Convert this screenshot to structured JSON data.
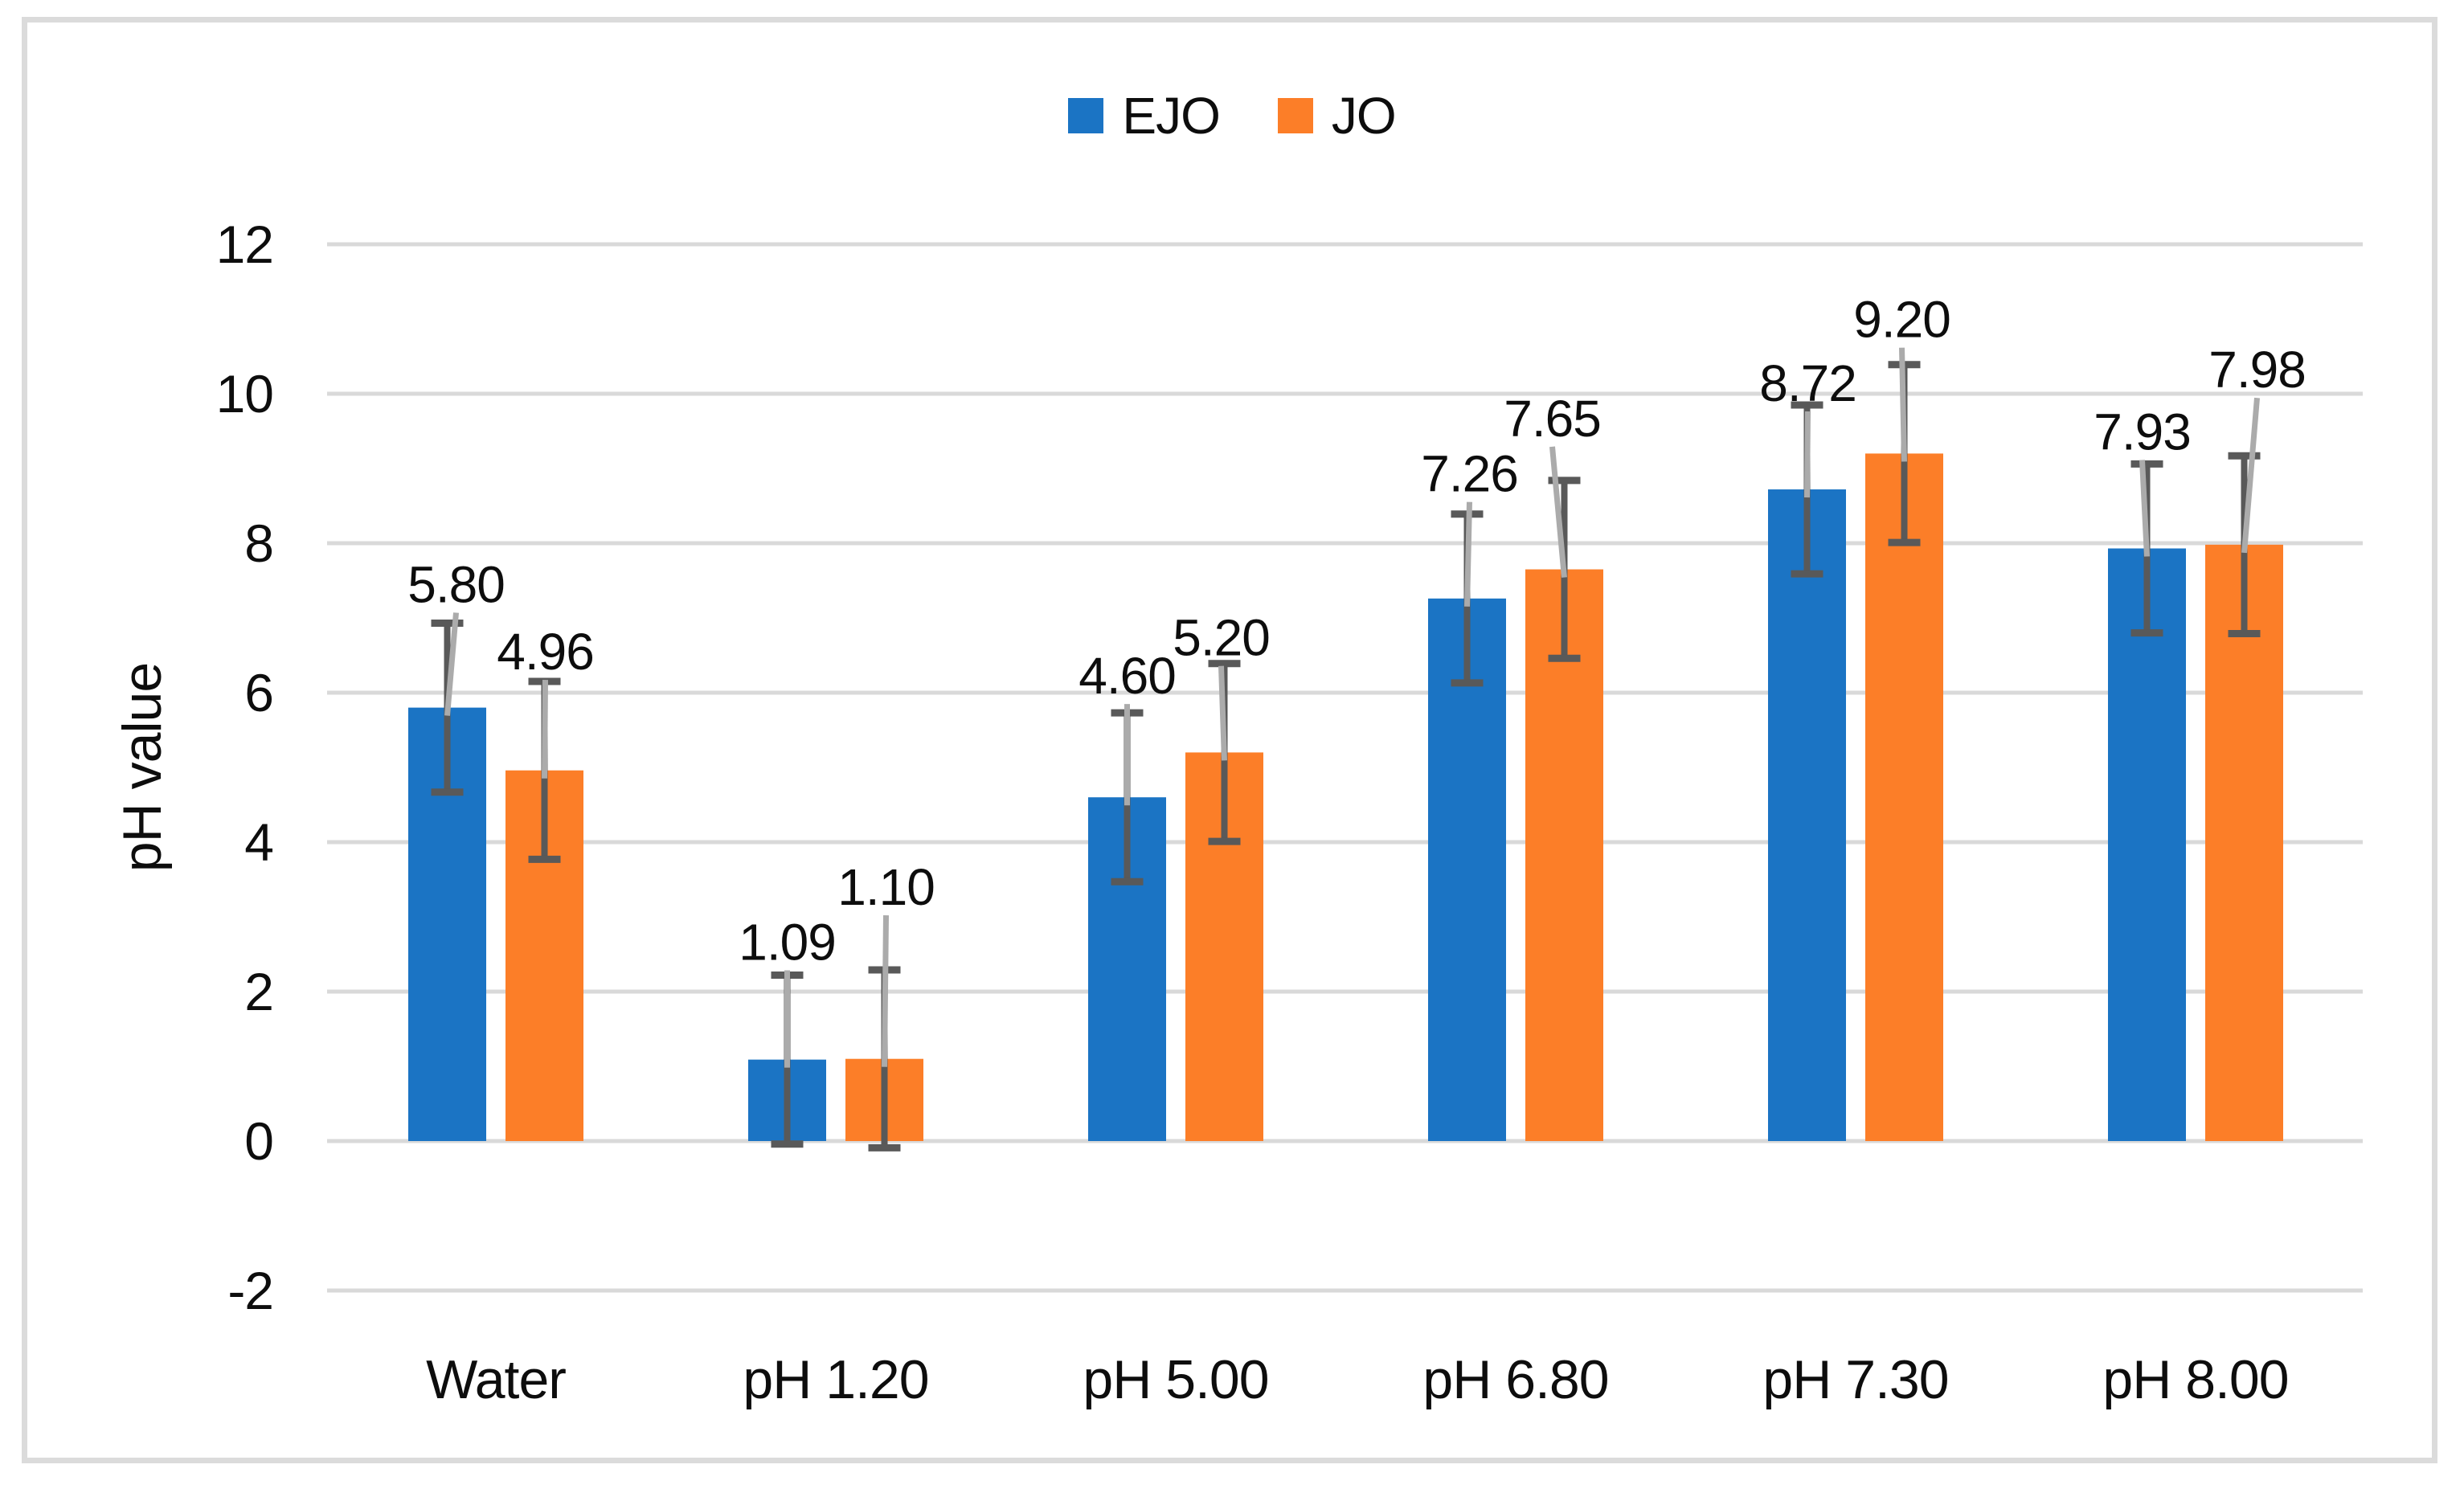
{
  "y_axis_title": "pH value",
  "chart_data": {
    "type": "bar",
    "title": "",
    "xlabel": "",
    "ylabel": "pH value",
    "categories": [
      "Water",
      "pH 1.20",
      "pH 5.00",
      "pH 6.80",
      "pH 7.30",
      "pH 8.00"
    ],
    "series": [
      {
        "name": "EJO",
        "color": "#1b74c4",
        "values": [
          5.8,
          1.09,
          4.6,
          7.26,
          8.72,
          7.93
        ],
        "data_labels": [
          "5.80",
          "1.09",
          "4.60",
          "7.26",
          "8.72",
          "7.93"
        ],
        "error_bar": 1.13
      },
      {
        "name": "JO",
        "color": "#fc7e28",
        "values": [
          4.96,
          1.1,
          5.2,
          7.65,
          9.2,
          7.98
        ],
        "data_labels": [
          "4.96",
          "1.10",
          "5.20",
          "7.65",
          "9.20",
          "7.98"
        ],
        "error_bar": 1.19
      }
    ],
    "y_ticks": [
      12,
      10,
      8,
      6,
      4,
      2,
      0,
      -2
    ],
    "ylim": [
      -2,
      12
    ],
    "grid": true,
    "legend_position": "top-center",
    "colors": {
      "gridline": "#d9d9d9",
      "border": "#dbdbdb",
      "error_bar": "#595959",
      "leader_line": "#ababab",
      "text": "#0d0d0d"
    }
  }
}
